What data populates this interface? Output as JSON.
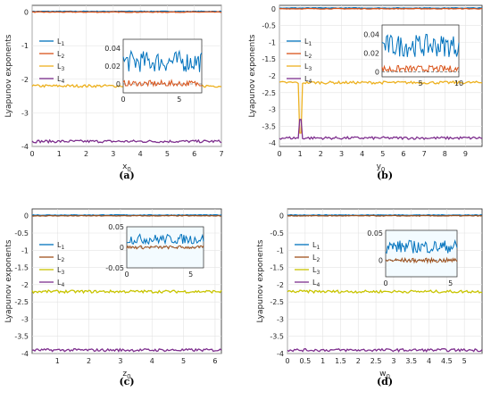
{
  "colors": {
    "L1": "#0072BD",
    "L2": "#D95319",
    "L2alt": "#A0521D",
    "L3": "#EDB120",
    "L3alt": "#C8C400",
    "L4": "#7E2F8E"
  },
  "chart_data": [
    {
      "panel": "a",
      "type": "line",
      "caption": "(a)",
      "xlabel": "x",
      "xlabel_sub": "0",
      "ylabel": "Lyapunov exponents",
      "xlim": [
        0,
        7
      ],
      "ylim": [
        -4,
        0.2
      ],
      "xticks": [
        "0",
        "1",
        "2",
        "3",
        "4",
        "5",
        "6",
        "7"
      ],
      "yticks": [
        "0",
        "-1",
        "-2",
        "-3",
        "-4"
      ],
      "grid": true,
      "legend_position": "upper-left",
      "series": [
        {
          "name": "L",
          "sub": "1",
          "level": 0.02
        },
        {
          "name": "L",
          "sub": "2",
          "level": 0.0
        },
        {
          "name": "L",
          "sub": "3",
          "level": -2.2
        },
        {
          "name": "L",
          "sub": "4",
          "level": -3.85
        }
      ],
      "inset": {
        "xticks": [
          "0",
          "5"
        ],
        "yticks": [
          "0.04",
          "0.02",
          "0"
        ],
        "xlim": [
          0,
          7
        ],
        "ylim": [
          -0.01,
          0.05
        ],
        "L1_level": 0.025,
        "L2_level": 0.0
      }
    },
    {
      "panel": "b",
      "type": "line",
      "caption": "(b)",
      "xlabel": "y",
      "xlabel_sub": "0",
      "ylabel": "Lyapunov exponents",
      "xlim": [
        0,
        9.8
      ],
      "ylim": [
        -4.1,
        0.1
      ],
      "xticks": [
        "0",
        "1",
        "2",
        "3",
        "4",
        "5",
        "6",
        "7",
        "8",
        "9"
      ],
      "yticks": [
        "0",
        "-0.5",
        "-1",
        "-1.5",
        "-2",
        "-2.5",
        "-3",
        "-3.5",
        "-4"
      ],
      "grid": true,
      "legend_position": "upper-left",
      "series": [
        {
          "name": "L",
          "sub": "1",
          "level": 0.02
        },
        {
          "name": "L",
          "sub": "2",
          "level": 0.0
        },
        {
          "name": "L",
          "sub": "3",
          "level": -2.2,
          "spike_at": 1.0,
          "spike_to": -3.7
        },
        {
          "name": "L",
          "sub": "4",
          "level": -3.85,
          "spike_at": 1.0,
          "spike_to": -3.3
        }
      ],
      "inset": {
        "xticks": [
          "5",
          "10"
        ],
        "yticks": [
          "0.04",
          "0.02",
          "0"
        ],
        "xlim": [
          0,
          10
        ],
        "ylim": [
          -0.005,
          0.05
        ],
        "L1_level": 0.028,
        "L2_level": 0.003
      }
    },
    {
      "panel": "c",
      "type": "line",
      "caption": "(c)",
      "xlabel": "z",
      "xlabel_sub": "0",
      "ylabel": "Lyapunov exponents",
      "xlim": [
        0.2,
        6.2
      ],
      "ylim": [
        -4,
        0.2
      ],
      "xticks": [
        "1",
        "2",
        "3",
        "4",
        "5",
        "6"
      ],
      "yticks": [
        "0",
        "-0.5",
        "-1",
        "-1.5",
        "-2",
        "-2.5",
        "-3",
        "-3.5",
        "-4"
      ],
      "grid": true,
      "legend_position": "upper-left",
      "series": [
        {
          "name": "L",
          "sub": "1",
          "level": 0.02
        },
        {
          "name": "L",
          "sub": "2",
          "level": 0.0
        },
        {
          "name": "L",
          "sub": "3",
          "level": -2.2
        },
        {
          "name": "L",
          "sub": "4",
          "level": -3.9
        }
      ],
      "inset": {
        "xticks": [
          "0",
          "5"
        ],
        "yticks": [
          "0.05",
          "0",
          "-0.05"
        ],
        "xlim": [
          0,
          6
        ],
        "ylim": [
          -0.05,
          0.05
        ],
        "L1_level": 0.02,
        "L2_level": 0.0
      }
    },
    {
      "panel": "d",
      "type": "line",
      "caption": "(d)",
      "xlabel": "w",
      "xlabel_sub": "0",
      "ylabel": "Lyapunov exponents",
      "xlim": [
        0,
        5.5
      ],
      "ylim": [
        -4,
        0.2
      ],
      "xticks": [
        "0",
        "0.5",
        "1",
        "1.5",
        "2",
        "2.5",
        "3",
        "3.5",
        "4",
        "4.5",
        "5"
      ],
      "yticks": [
        "0",
        "-0.5",
        "-1",
        "-1.5",
        "-2",
        "-2.5",
        "-3",
        "-3.5",
        "-4"
      ],
      "grid": true,
      "legend_position": "upper-left",
      "series": [
        {
          "name": "L",
          "sub": "1",
          "level": 0.02
        },
        {
          "name": "L",
          "sub": "2",
          "level": 0.0
        },
        {
          "name": "L",
          "sub": "3",
          "level": -2.2
        },
        {
          "name": "L",
          "sub": "4",
          "level": -3.9
        }
      ],
      "inset": {
        "xticks": [
          "0",
          "5"
        ],
        "yticks": [
          "0.05",
          "0"
        ],
        "xlim": [
          0,
          5.5
        ],
        "ylim": [
          -0.03,
          0.055
        ],
        "L1_level": 0.025,
        "L2_level": 0.0
      }
    }
  ]
}
